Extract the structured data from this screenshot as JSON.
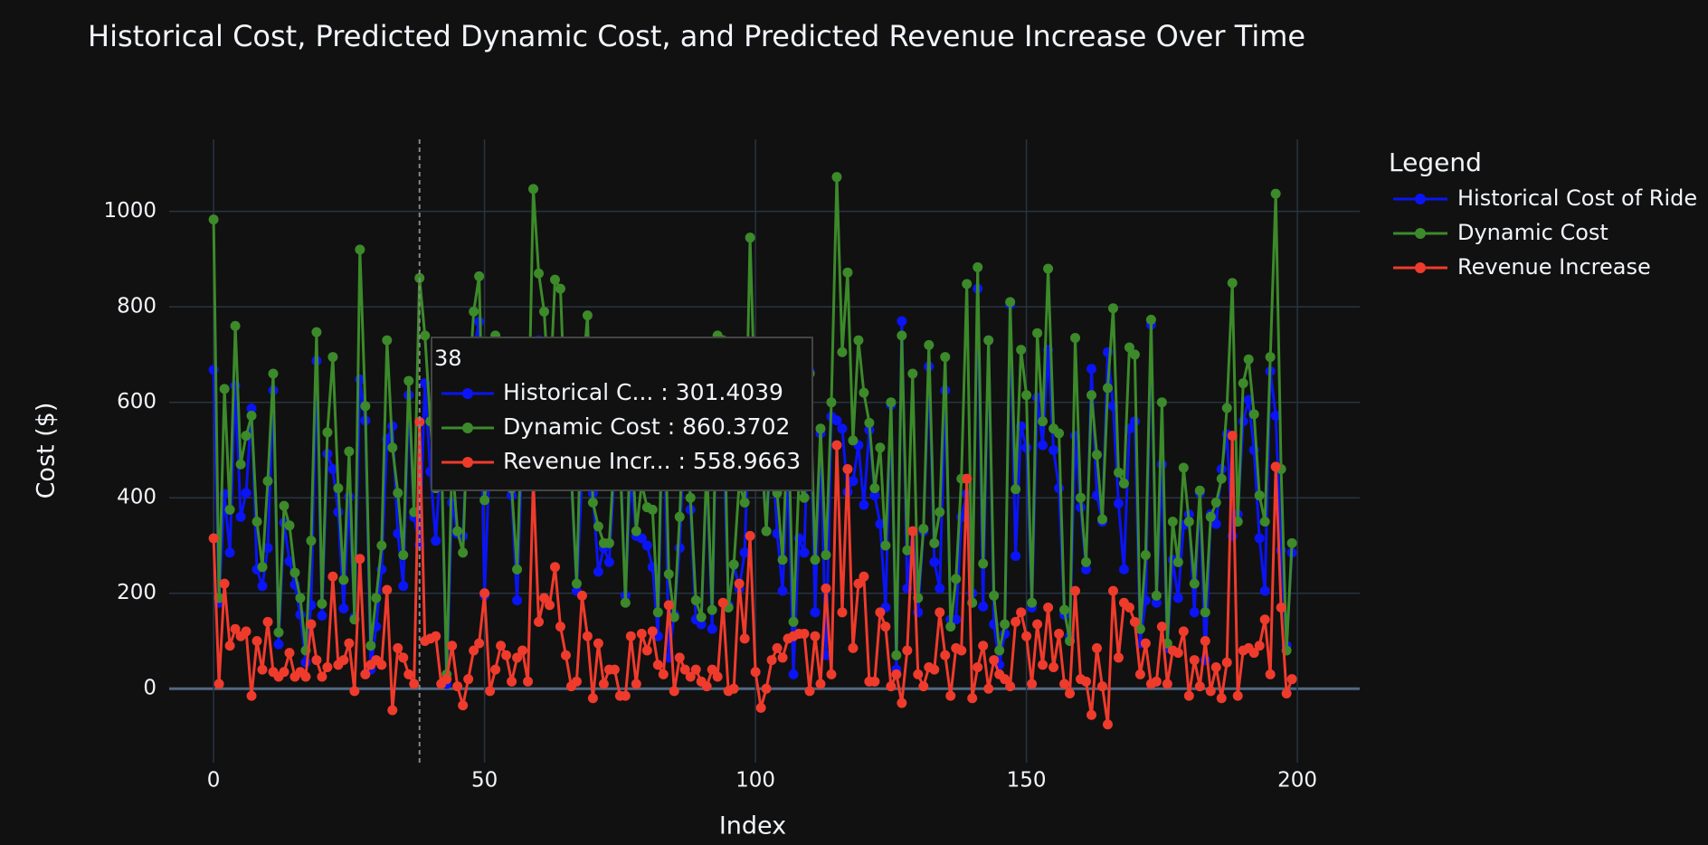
{
  "chart_data": {
    "type": "line",
    "title": "Historical Cost, Predicted Dynamic Cost, and Predicted Revenue Increase Over Time",
    "x_label": "Index",
    "y_label": "Cost ($)",
    "legend_title": "Legend",
    "legend_position": "right",
    "grid": true,
    "xlim": [
      -8.2,
      211.5
    ],
    "xticks": [
      0,
      50,
      100,
      150,
      200
    ],
    "ylim": [
      -155,
      1151
    ],
    "yticks": [
      0,
      200,
      400,
      600,
      800,
      1000
    ],
    "x": [
      0,
      1,
      2,
      3,
      4,
      5,
      6,
      7,
      8,
      9,
      10,
      11,
      12,
      13,
      14,
      15,
      16,
      17,
      18,
      19,
      20,
      21,
      22,
      23,
      24,
      25,
      26,
      27,
      28,
      29,
      30,
      31,
      32,
      33,
      34,
      35,
      36,
      37,
      38,
      39,
      40,
      41,
      42,
      43,
      44,
      45,
      46,
      47,
      48,
      49,
      50,
      51,
      52,
      53,
      54,
      55,
      56,
      57,
      58,
      59,
      60,
      61,
      62,
      63,
      64,
      65,
      66,
      67,
      68,
      69,
      70,
      71,
      72,
      73,
      74,
      75,
      76,
      77,
      78,
      79,
      80,
      81,
      82,
      83,
      84,
      85,
      86,
      87,
      88,
      89,
      90,
      91,
      92,
      93,
      94,
      95,
      96,
      97,
      98,
      99,
      100,
      101,
      102,
      103,
      104,
      105,
      106,
      107,
      108,
      109,
      110,
      111,
      112,
      113,
      114,
      115,
      116,
      117,
      118,
      119,
      120,
      121,
      122,
      123,
      124,
      125,
      126,
      127,
      128,
      129,
      130,
      131,
      132,
      133,
      134,
      135,
      136,
      137,
      138,
      139,
      140,
      141,
      142,
      143,
      144,
      145,
      146,
      147,
      148,
      149,
      150,
      151,
      152,
      153,
      154,
      155,
      156,
      157,
      158,
      159,
      160,
      161,
      162,
      163,
      164,
      165,
      166,
      167,
      168,
      169,
      170,
      171,
      172,
      173,
      174,
      175,
      176,
      177,
      178,
      179,
      180,
      181,
      182,
      183,
      184,
      185,
      186,
      187,
      188,
      189,
      190,
      191,
      192,
      193,
      194,
      195,
      196,
      197,
      198,
      199
    ],
    "series": [
      {
        "name": "Historical Cost of Ride",
        "color": "#0a14f5",
        "values": [
          668,
          180,
          408,
          285,
          635,
          360,
          410,
          587,
          250,
          215,
          295,
          625,
          93,
          348,
          267,
          218,
          155,
          55,
          175,
          687,
          153,
          492,
          460,
          370,
          168,
          402,
          150,
          648,
          562,
          40,
          130,
          250,
          523,
          550,
          325,
          215,
          615,
          360,
          301.4039,
          640,
          455,
          310,
          500,
          10,
          390,
          325,
          320,
          580,
          710,
          769,
          195,
          505,
          700,
          490,
          460,
          405,
          185,
          520,
          465,
          607,
          730,
          600,
          425,
          602,
          708,
          470,
          445,
          205,
          445,
          672,
          410,
          245,
          295,
          265,
          460,
          495,
          195,
          450,
          320,
          315,
          300,
          255,
          110,
          670,
          65,
          155,
          295,
          580,
          375,
          145,
          135,
          465,
          125,
          715,
          550,
          175,
          260,
          210,
          285,
          625,
          525,
          560,
          330,
          530,
          325,
          205,
          465,
          30,
          315,
          285,
          665,
          160,
          535,
          70,
          570,
          562,
          545,
          412,
          435,
          510,
          385,
          542,
          405,
          345,
          170,
          595,
          40,
          770,
          210,
          330,
          160,
          330,
          675,
          265,
          210,
          625,
          145,
          145,
          360,
          408,
          200,
          838,
          172,
          730,
          135,
          50,
          115,
          805,
          278,
          550,
          505,
          170,
          610,
          510,
          710,
          500,
          420,
          155,
          110,
          530,
          380,
          250,
          670,
          405,
          350,
          705,
          592,
          388,
          250,
          545,
          560,
          95,
          185,
          763,
          180,
          470,
          85,
          270,
          190,
          343,
          365,
          160,
          410,
          60,
          365,
          345,
          460,
          533,
          320,
          365,
          560,
          605,
          500,
          315,
          205,
          665,
          572,
          290,
          90,
          285
        ]
      },
      {
        "name": "Dynamic Cost",
        "color": "#3c8a2a",
        "values": [
          983,
          190,
          628,
          375,
          760,
          470,
          530,
          572,
          350,
          255,
          435,
          660,
          118,
          383,
          342,
          243,
          190,
          80,
          310,
          747,
          178,
          537,
          695,
          420,
          228,
          497,
          145,
          920,
          592,
          90,
          190,
          300,
          730,
          505,
          410,
          280,
          645,
          370,
          860.3702,
          740,
          560,
          420,
          510,
          30,
          480,
          330,
          285,
          600,
          790,
          864,
          395,
          500,
          740,
          580,
          530,
          420,
          250,
          600,
          480,
          1047,
          870,
          790,
          600,
          857,
          838,
          540,
          450,
          220,
          640,
          782,
          390,
          340,
          305,
          305,
          500,
          480,
          180,
          560,
          330,
          430,
          380,
          375,
          160,
          700,
          240,
          150,
          360,
          620,
          400,
          185,
          150,
          470,
          165,
          740,
          730,
          170,
          260,
          430,
          390,
          945,
          560,
          520,
          330,
          590,
          410,
          270,
          570,
          140,
          430,
          400,
          660,
          270,
          545,
          280,
          600,
          1072,
          705,
          872,
          520,
          730,
          620,
          557,
          420,
          505,
          300,
          600,
          70,
          740,
          290,
          660,
          190,
          335,
          720,
          305,
          370,
          695,
          130,
          230,
          440,
          848,
          180,
          883,
          262,
          730,
          195,
          80,
          135,
          810,
          418,
          710,
          615,
          180,
          745,
          560,
          880,
          545,
          535,
          165,
          100,
          735,
          400,
          265,
          615,
          490,
          355,
          630,
          797,
          453,
          430,
          715,
          700,
          125,
          280,
          773,
          195,
          600,
          95,
          350,
          265,
          463,
          350,
          220,
          415,
          160,
          360,
          390,
          440,
          588,
          850,
          350,
          640,
          690,
          575,
          405,
          350,
          695,
          1037,
          460,
          80,
          305
        ]
      },
      {
        "name": "Revenue Increase",
        "color": "#ef3b2c",
        "values": [
          315,
          10,
          220,
          90,
          125,
          110,
          120,
          -15,
          100,
          40,
          140,
          35,
          25,
          35,
          75,
          25,
          35,
          25,
          135,
          60,
          25,
          45,
          235,
          50,
          60,
          95,
          -5,
          272,
          30,
          50,
          60,
          50,
          207,
          -45,
          85,
          65,
          30,
          10,
          558.9663,
          100,
          105,
          110,
          10,
          20,
          90,
          5,
          -35,
          20,
          80,
          95,
          200,
          -5,
          40,
          90,
          70,
          15,
          65,
          80,
          15,
          440,
          140,
          190,
          175,
          255,
          130,
          70,
          5,
          15,
          195,
          110,
          -20,
          95,
          10,
          40,
          40,
          -15,
          -15,
          110,
          10,
          115,
          80,
          120,
          50,
          30,
          175,
          -5,
          65,
          40,
          25,
          40,
          15,
          5,
          40,
          25,
          180,
          -5,
          0,
          220,
          105,
          320,
          35,
          -40,
          0,
          60,
          85,
          65,
          105,
          110,
          115,
          115,
          -5,
          110,
          10,
          210,
          30,
          510,
          160,
          460,
          85,
          220,
          235,
          15,
          15,
          160,
          130,
          5,
          30,
          -30,
          80,
          330,
          30,
          5,
          45,
          40,
          160,
          70,
          -15,
          85,
          80,
          440,
          -20,
          45,
          90,
          0,
          60,
          30,
          20,
          5,
          140,
          160,
          110,
          10,
          135,
          50,
          170,
          45,
          115,
          10,
          -10,
          205,
          20,
          15,
          -55,
          85,
          5,
          -75,
          205,
          65,
          180,
          170,
          140,
          30,
          95,
          10,
          15,
          130,
          10,
          80,
          75,
          120,
          -15,
          60,
          5,
          100,
          -5,
          45,
          -20,
          55,
          530,
          -15,
          80,
          85,
          75,
          90,
          145,
          30,
          465,
          170,
          -10,
          20
        ]
      }
    ],
    "hover": {
      "index": 38,
      "lines": [
        "Historical C... : 301.4039",
        "Dynamic Cost : 860.3702",
        "Revenue Incr... : 558.9663"
      ]
    }
  }
}
